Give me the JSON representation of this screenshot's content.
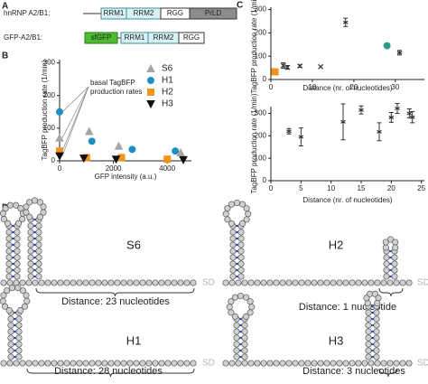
{
  "panel_labels": [
    "A",
    "B",
    "C",
    "D"
  ],
  "constructs": [
    {
      "name": "hnRNP A2/B1:",
      "domains": [
        "RRM1",
        "RRM2",
        "RGG",
        "PrLD"
      ]
    },
    {
      "name": "GFP-A2/B1:",
      "domains": [
        "sfGFP",
        "RRM1",
        "RRM2",
        "RGG"
      ]
    }
  ],
  "chart_data": [
    {
      "type": "scatter",
      "xlabel": "GFP intensity (a.u.)",
      "ylabel": "TagBFP production rate (1/min)",
      "annotation": [
        "basal TagBFP",
        "production rates"
      ],
      "xlim": [
        0,
        4900
      ],
      "xticks": [
        0,
        2000,
        4000
      ],
      "ylim": [
        0,
        310
      ],
      "yticks": [
        0,
        100,
        200,
        300
      ],
      "legend": "upper right",
      "series": [
        {
          "name": "S6",
          "color": "#a6a6a6",
          "marker": "triangle-up",
          "x": [
            0,
            1100,
            2200,
            4500
          ],
          "values": [
            70,
            90,
            45,
            25
          ]
        },
        {
          "name": "H1",
          "color": "#1f8fc0",
          "marker": "circle",
          "x": [
            0,
            1200,
            2700,
            4300
          ],
          "values": [
            150,
            60,
            35,
            30
          ]
        },
        {
          "name": "H2",
          "color": "#f0941d",
          "marker": "square",
          "x": [
            0,
            1000,
            2300,
            4000
          ],
          "values": [
            30,
            10,
            10,
            5
          ]
        },
        {
          "name": "H3",
          "color": "#111111",
          "marker": "triangle-down",
          "x": [
            0,
            900,
            2100,
            4600
          ],
          "values": [
            15,
            8,
            5,
            3
          ]
        }
      ]
    },
    {
      "type": "scatter",
      "xlabel": "Distance (nr. of nucleotides)",
      "ylabel": "TagBFP production rate (1/min)",
      "xlim": [
        0,
        37
      ],
      "xticks": [
        0,
        10,
        20,
        30
      ],
      "ylim": [
        0,
        310
      ],
      "yticks": [
        0,
        100,
        200,
        300
      ],
      "x": [
        1,
        3,
        4,
        7,
        12,
        18,
        28,
        31
      ],
      "values": [
        33,
        60,
        52,
        58,
        55,
        245,
        145,
        115
      ],
      "errors": [
        null,
        12,
        8,
        5,
        null,
        18,
        null,
        10
      ],
      "colors": [
        "#f0941d",
        "#333333",
        "#333333",
        "#333333",
        "#333333",
        "#333333",
        "#2a9d8f",
        "#333333"
      ],
      "markers": [
        "square",
        "cross",
        "cross",
        "cross",
        "cross",
        "bar",
        "circle",
        "bar"
      ]
    },
    {
      "type": "scatter",
      "xlabel": "Distance (nr. of nucleotides)",
      "ylabel": "TagBFP production rate (1/min)",
      "xlim": [
        0,
        25.5
      ],
      "xticks": [
        0,
        5,
        10,
        15,
        20,
        25
      ],
      "ylim": [
        0,
        330
      ],
      "yticks": [
        0,
        100,
        200,
        300
      ],
      "x": [
        3,
        5,
        12,
        15,
        18,
        20,
        21,
        23,
        23.5
      ],
      "values": [
        220,
        195,
        262,
        315,
        218,
        282,
        322,
        300,
        283
      ],
      "errors": [
        12,
        40,
        80,
        18,
        40,
        22,
        22,
        20,
        25
      ],
      "colors": [
        "#333333",
        "#333333",
        "#333333",
        "#333333",
        "#333333",
        "#333333",
        "#333333",
        "#333333",
        "#333333"
      ],
      "markers": [
        "bar",
        "bar",
        "bar",
        "bar",
        "bar",
        "bar",
        "bar",
        "bar",
        "bar"
      ]
    }
  ],
  "structures": [
    {
      "label": "S6",
      "distance": "Distance: 23 nucleotides",
      "sd": "SD"
    },
    {
      "label": "H2",
      "distance": "Distance: 1 nucleotide",
      "sd": "SD"
    },
    {
      "label": "H1",
      "distance": "Distance: 28 nucleotides",
      "sd": "SD"
    },
    {
      "label": "H3",
      "distance": "Distance: 3 nucleotides",
      "sd": "SD"
    }
  ]
}
